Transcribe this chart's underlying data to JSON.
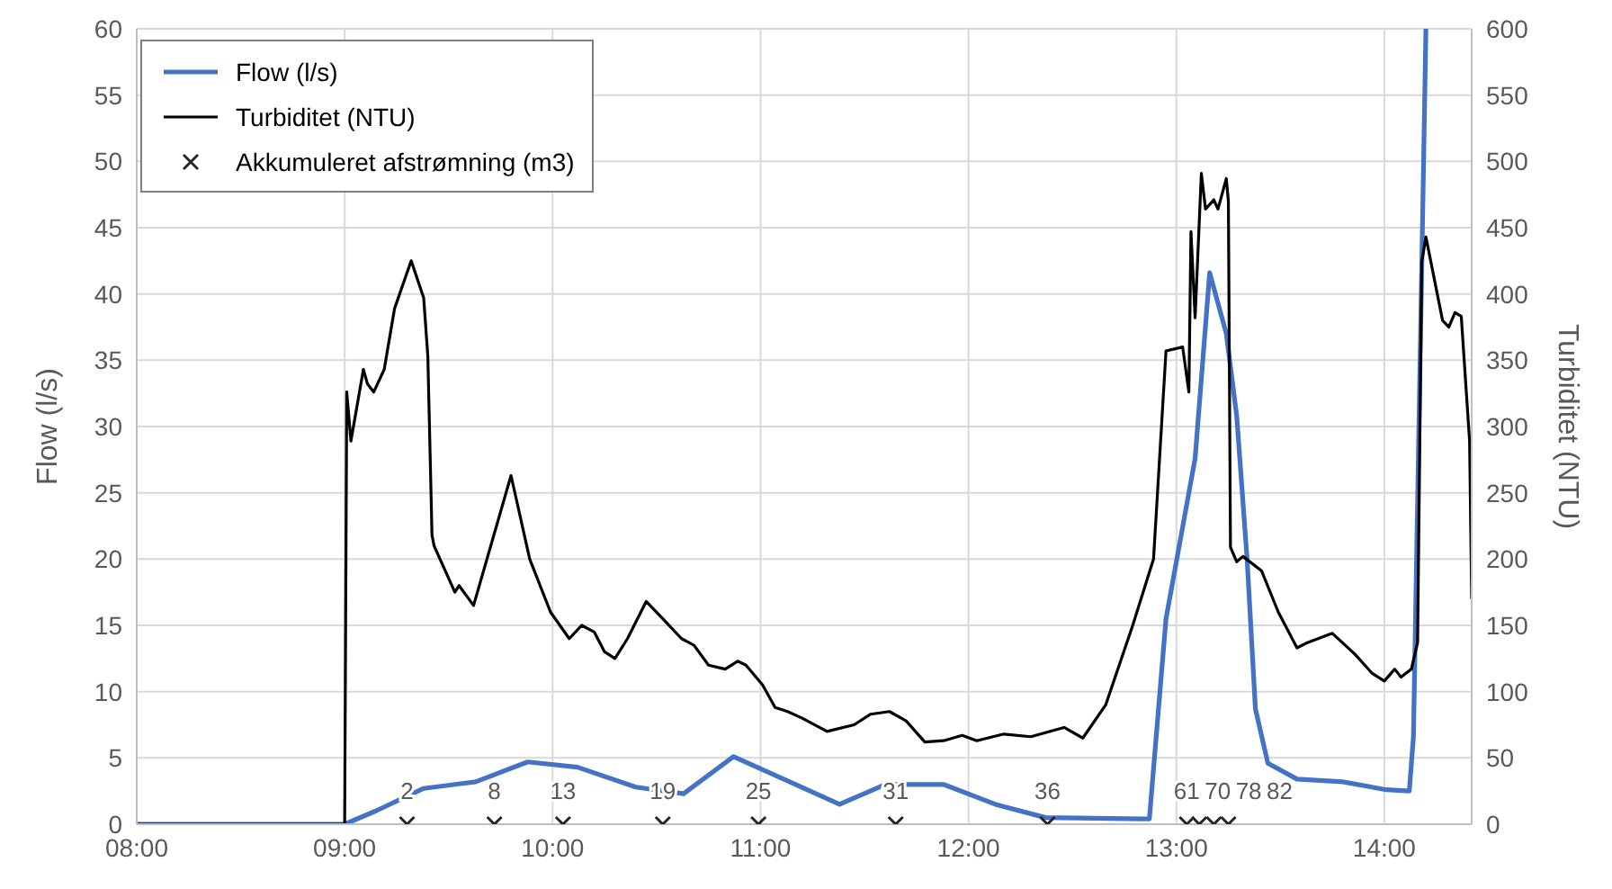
{
  "chart_data": {
    "type": "line",
    "ylabel": "Flow (l/s)",
    "y2label": "Turbiditet (NTU)",
    "xlim": [
      8,
      14.42
    ],
    "xticks": [
      {
        "value": 8,
        "label": "08:00"
      },
      {
        "value": 9,
        "label": "09:00"
      },
      {
        "value": 10,
        "label": "10:00"
      },
      {
        "value": 11,
        "label": "11:00"
      },
      {
        "value": 12,
        "label": "12:00"
      },
      {
        "value": 13,
        "label": "13:00"
      },
      {
        "value": 14,
        "label": "14:00"
      }
    ],
    "ylim": [
      0,
      60
    ],
    "yticks": [
      0,
      5,
      10,
      15,
      20,
      25,
      30,
      35,
      40,
      45,
      50,
      55,
      60
    ],
    "y2lim": [
      0,
      600
    ],
    "y2ticks": [
      0,
      50,
      100,
      150,
      200,
      250,
      300,
      350,
      400,
      450,
      500,
      550,
      600
    ],
    "grid": true,
    "legend": "top left",
    "series": [
      {
        "name": "Flow (l/s)",
        "color": "#4472c4",
        "x": [
          8,
          9,
          9.15,
          9.38,
          9.63,
          9.88,
          10.12,
          10.4,
          10.63,
          10.87,
          11.14,
          11.38,
          11.6,
          11.88,
          12.13,
          12.37,
          12.87,
          12.95,
          13.09,
          13.16,
          13.24,
          13.29,
          13.34,
          13.38,
          13.44,
          13.58,
          13.8,
          14.01,
          14.12,
          14.14,
          14.19,
          14.2
        ],
        "values": [
          0,
          0,
          1,
          2.7,
          3.2,
          4.7,
          4.3,
          2.8,
          2.3,
          5.1,
          3.2,
          1.5,
          3,
          3,
          1.5,
          0.5,
          0.4,
          15.5,
          27.6,
          41.6,
          37,
          30.8,
          20,
          8.7,
          4.6,
          3.4,
          3.2,
          2.6,
          2.5,
          6.6,
          51,
          60
        ]
      },
      {
        "name": "Turbiditet (NTU)",
        "axis": "y2",
        "color": "#000000",
        "x": [
          8,
          9,
          9.01,
          9.03,
          9.09,
          9.11,
          9.14,
          9.19,
          9.24,
          9.32,
          9.38,
          9.4,
          9.42,
          9.43,
          9.53,
          9.55,
          9.62,
          9.8,
          9.89,
          9.99,
          10.08,
          10.14,
          10.2,
          10.25,
          10.3,
          10.36,
          10.45,
          10.53,
          10.62,
          10.68,
          10.75,
          10.83,
          10.89,
          10.93,
          11.01,
          11.07,
          11.13,
          11.2,
          11.32,
          11.45,
          11.53,
          11.62,
          11.7,
          11.79,
          11.88,
          11.97,
          12.04,
          12.17,
          12.3,
          12.46,
          12.55,
          12.66,
          12.79,
          12.89,
          12.95,
          13.03,
          13.06,
          13.07,
          13.09,
          13.12,
          13.14,
          13.18,
          13.2,
          13.24,
          13.25,
          13.26,
          13.29,
          13.32,
          13.41,
          13.49,
          13.58,
          13.63,
          13.75,
          13.86,
          13.94,
          14,
          14.05,
          14.08,
          14.13,
          14.16,
          14.18,
          14.2,
          14.28,
          14.31,
          14.34,
          14.37,
          14.41,
          14.42
        ],
        "values": [
          0,
          0,
          326,
          289,
          343,
          332,
          326,
          343,
          389,
          425,
          397,
          353,
          218,
          210,
          175,
          180,
          165,
          263,
          200,
          160,
          140,
          150,
          145,
          130,
          125,
          140,
          168,
          155,
          140,
          135,
          120,
          117,
          123,
          120,
          105,
          88,
          85,
          80,
          70,
          75,
          83,
          85,
          78,
          62,
          63,
          67,
          63,
          68,
          66,
          73,
          65,
          90,
          150,
          200,
          357,
          360,
          326,
          447,
          382,
          491,
          464,
          471,
          464,
          487,
          470,
          209,
          198,
          202,
          191,
          160,
          133,
          137,
          144,
          128,
          114,
          108,
          117,
          111,
          117,
          137,
          424,
          443,
          380,
          375,
          386,
          383,
          289,
          170
        ]
      },
      {
        "name": "Akkumuleret afstrømning (m3)",
        "type": "scatter",
        "color": "#262626",
        "marker": "cross",
        "x": [
          9.3,
          9.72,
          10.05,
          10.53,
          10.99,
          11.65,
          12.38,
          13.05,
          13.11,
          13.18,
          13.25
        ],
        "values": [
          0,
          0,
          0,
          0,
          0,
          0,
          0,
          0,
          0,
          0,
          0
        ]
      }
    ],
    "annotations": [
      {
        "text": "2",
        "x": 9.3,
        "y": 0
      },
      {
        "text": "8",
        "x": 9.72,
        "y": 0
      },
      {
        "text": "13",
        "x": 10.05,
        "y": 0
      },
      {
        "text": "19",
        "x": 10.53,
        "y": 0
      },
      {
        "text": "25",
        "x": 10.99,
        "y": 0
      },
      {
        "text": "31",
        "x": 11.65,
        "y": 0
      },
      {
        "text": "36",
        "x": 12.38,
        "y": 0
      },
      {
        "text": "61",
        "x": 13.05,
        "y": 0
      },
      {
        "text": "70",
        "x": 13.11,
        "y": 0
      },
      {
        "text": "78",
        "x": 13.18,
        "y": 0
      },
      {
        "text": "82",
        "x": 13.25,
        "y": 0
      }
    ]
  }
}
